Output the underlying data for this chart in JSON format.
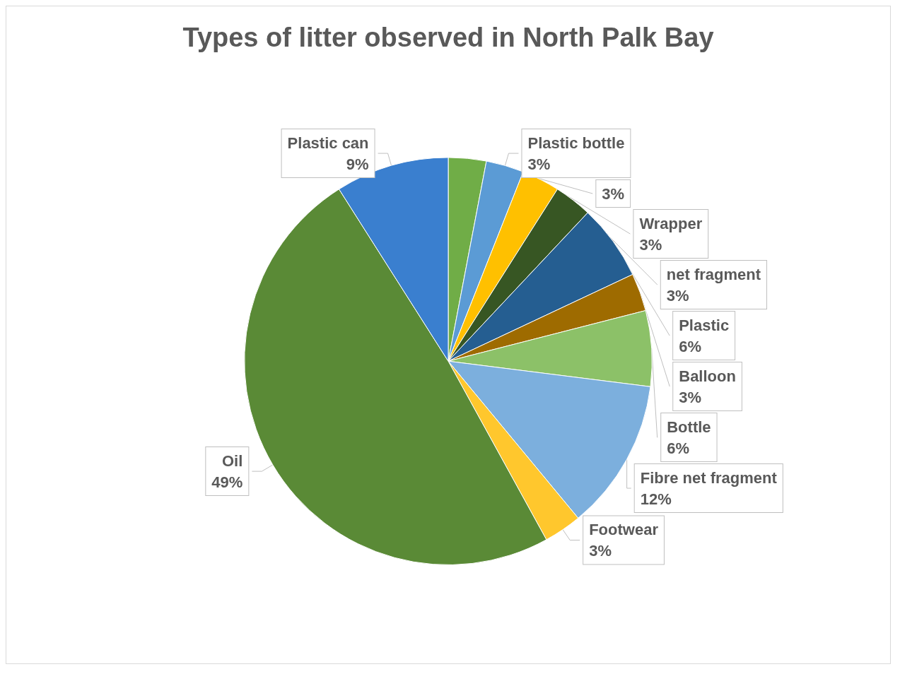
{
  "chart_data": {
    "type": "pie",
    "title": "Types of litter observed in North Palk Bay",
    "categories": [
      null,
      "Plastic bottle",
      "Wrapper",
      "net fragment",
      "Plastic",
      "Balloon",
      "Bottle",
      "Fibre net fragment",
      "Footwear",
      "Oil",
      "Plastic can"
    ],
    "values": [
      3,
      3,
      3,
      3,
      6,
      3,
      6,
      12,
      3,
      49,
      9
    ],
    "value_labels": [
      "3%",
      "3%",
      "3%",
      "3%",
      "6%",
      "3%",
      "6%",
      "12%",
      "3%",
      "49%",
      "9%"
    ],
    "colors": [
      "#70ad47",
      "#5b9bd5",
      "#ffc000",
      "#375623",
      "#255e91",
      "#9e6b00",
      "#8cc168",
      "#7cafdd",
      "#ffc72d",
      "#5a8a36",
      "#3a7fcf"
    ],
    "legend": false
  }
}
